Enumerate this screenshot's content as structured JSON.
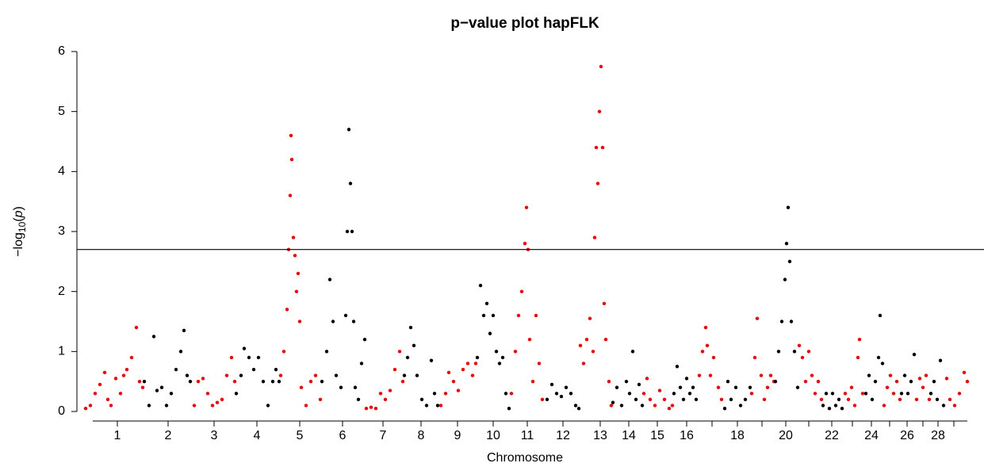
{
  "chart_data": {
    "type": "scatter",
    "title": "p−value plot hapFLK",
    "xlabel": "Chromosome",
    "ylabel": [
      "−log",
      "10",
      "(",
      "p",
      ")"
    ],
    "xlim": [
      0,
      1141
    ],
    "ylim": [
      0,
      6
    ],
    "yticks": [
      0,
      1,
      2,
      3,
      4,
      5,
      6
    ],
    "xticks": [
      {
        "value": 48,
        "label": "1"
      },
      {
        "value": 112,
        "label": "2"
      },
      {
        "value": 170,
        "label": "3"
      },
      {
        "value": 224,
        "label": "4"
      },
      {
        "value": 278,
        "label": "5"
      },
      {
        "value": 332,
        "label": "6"
      },
      {
        "value": 383,
        "label": "7"
      },
      {
        "value": 431,
        "label": "8"
      },
      {
        "value": 477,
        "label": "9"
      },
      {
        "value": 522,
        "label": "10"
      },
      {
        "value": 565,
        "label": "11"
      },
      {
        "value": 610,
        "label": "12"
      },
      {
        "value": 657,
        "label": "13"
      },
      {
        "value": 693,
        "label": "14"
      },
      {
        "value": 729,
        "label": "15"
      },
      {
        "value": 766,
        "label": "16"
      },
      {
        "value": 830,
        "label": "18"
      },
      {
        "value": 891,
        "label": "20"
      },
      {
        "value": 949,
        "label": "22"
      },
      {
        "value": 999,
        "label": "24"
      },
      {
        "value": 1044,
        "label": "26"
      },
      {
        "value": 1083,
        "label": "28"
      }
    ],
    "minor_xticks": [
      798,
      861,
      920,
      975,
      1022,
      1064,
      1103
    ],
    "threshold": 2.7,
    "chromosomes": [
      {
        "color": "#ff0000",
        "x": [
          8,
          14,
          20,
          26,
          32,
          36,
          40,
          46,
          52,
          56,
          60,
          66,
          72,
          76,
          80
        ],
        "values": [
          0.05,
          0.1,
          0.3,
          0.45,
          0.65,
          0.2,
          0.1,
          0.55,
          0.3,
          0.6,
          0.7,
          0.9,
          1.4,
          0.5,
          0.4
        ]
      },
      {
        "color": "#000000",
        "x": [
          82,
          88,
          94,
          98,
          104,
          110,
          116,
          122,
          128,
          132,
          136,
          140
        ],
        "values": [
          0.5,
          0.1,
          1.25,
          0.35,
          0.4,
          0.1,
          0.3,
          0.7,
          1.0,
          1.35,
          0.6,
          0.5
        ]
      },
      {
        "color": "#ff0000",
        "x": [
          145,
          150,
          156,
          162,
          168,
          174,
          180,
          186,
          192,
          196
        ],
        "values": [
          0.1,
          0.5,
          0.55,
          0.3,
          0.1,
          0.15,
          0.2,
          0.6,
          0.9,
          0.5
        ]
      },
      {
        "color": "#000000",
        "x": [
          198,
          204,
          208,
          214,
          220,
          226,
          232,
          238,
          244,
          248,
          252
        ],
        "values": [
          0.3,
          0.6,
          1.05,
          0.9,
          0.7,
          0.9,
          0.5,
          0.1,
          0.5,
          0.7,
          0.5
        ]
      },
      {
        "color": "#ff0000",
        "x": [
          254,
          258,
          262,
          264,
          266,
          267,
          268,
          270,
          272,
          274,
          276,
          278,
          280,
          286,
          292,
          298,
          304
        ],
        "values": [
          0.6,
          1.0,
          1.7,
          2.7,
          3.6,
          4.6,
          4.2,
          2.9,
          2.6,
          2.0,
          2.3,
          1.5,
          0.4,
          0.1,
          0.5,
          0.6,
          0.2
        ]
      },
      {
        "color": "#000000",
        "x": [
          306,
          312,
          316,
          320,
          324,
          330,
          336,
          338,
          340,
          342,
          344,
          346,
          348,
          352,
          356,
          360
        ],
        "values": [
          0.5,
          1.0,
          2.2,
          1.5,
          0.6,
          0.4,
          1.6,
          3.0,
          4.7,
          3.8,
          3.0,
          1.5,
          0.4,
          0.2,
          0.8,
          1.2
        ]
      },
      {
        "color": "#ff0000",
        "x": [
          362,
          368,
          374,
          380,
          386,
          392,
          398,
          404,
          408
        ],
        "values": [
          0.05,
          0.07,
          0.05,
          0.3,
          0.2,
          0.35,
          0.7,
          1.0,
          0.5
        ]
      },
      {
        "color": "#000000",
        "x": [
          410,
          414,
          418,
          422,
          426,
          432,
          438,
          444,
          448,
          452
        ],
        "values": [
          0.6,
          0.9,
          1.4,
          1.1,
          0.6,
          0.2,
          0.1,
          0.85,
          0.3,
          0.1
        ]
      },
      {
        "color": "#ff0000",
        "x": [
          456,
          462,
          466,
          472,
          478,
          484,
          490,
          496,
          500
        ],
        "values": [
          0.1,
          0.3,
          0.65,
          0.5,
          0.35,
          0.7,
          0.8,
          0.6,
          0.8
        ]
      },
      {
        "color": "#000000",
        "x": [
          502,
          506,
          510,
          514,
          518,
          522,
          526,
          530,
          534,
          538,
          542
        ],
        "values": [
          0.9,
          2.1,
          1.6,
          1.8,
          1.3,
          1.6,
          1.0,
          0.8,
          0.9,
          0.3,
          0.05
        ]
      },
      {
        "color": "#ff0000",
        "x": [
          545,
          550,
          554,
          558,
          562,
          564,
          566,
          568,
          572,
          576,
          580,
          584
        ],
        "values": [
          0.3,
          1.0,
          1.6,
          2.0,
          2.8,
          3.4,
          2.7,
          1.2,
          0.5,
          1.6,
          0.8,
          0.2
        ]
      },
      {
        "color": "#000000",
        "x": [
          590,
          596,
          602,
          608,
          614,
          620,
          626,
          630
        ],
        "values": [
          0.2,
          0.45,
          0.3,
          0.25,
          0.4,
          0.3,
          0.1,
          0.05
        ]
      },
      {
        "color": "#ff0000",
        "x": [
          632,
          636,
          640,
          644,
          648,
          650,
          652,
          654,
          656,
          658,
          660,
          662,
          664,
          668,
          671
        ],
        "values": [
          1.1,
          0.8,
          1.2,
          1.55,
          1.0,
          2.9,
          4.4,
          3.8,
          5.0,
          5.75,
          4.4,
          1.8,
          1.2,
          0.5,
          0.1
        ]
      },
      {
        "color": "#000000",
        "x": [
          673,
          678,
          684,
          690,
          694,
          698,
          702,
          706,
          710
        ],
        "values": [
          0.15,
          0.4,
          0.1,
          0.5,
          0.3,
          1.0,
          0.2,
          0.45,
          0.1
        ]
      },
      {
        "color": "#ff0000",
        "x": [
          712,
          716,
          720,
          726,
          732,
          738,
          744,
          748
        ],
        "values": [
          0.3,
          0.55,
          0.2,
          0.1,
          0.35,
          0.2,
          0.05,
          0.1
        ]
      },
      {
        "color": "#000000",
        "x": [
          750,
          754,
          758,
          762,
          766,
          770,
          774,
          778
        ],
        "values": [
          0.3,
          0.75,
          0.4,
          0.2,
          0.55,
          0.3,
          0.4,
          0.2
        ]
      },
      {
        "color": "#ff0000",
        "x": [
          782,
          786,
          790,
          792,
          796,
          800,
          806,
          810
        ],
        "values": [
          0.6,
          1.0,
          1.4,
          1.1,
          0.6,
          0.9,
          0.4,
          0.2
        ]
      },
      {
        "color": "#000000",
        "x": [
          814,
          818,
          822,
          828,
          834,
          840,
          846
        ],
        "values": [
          0.05,
          0.5,
          0.2,
          0.4,
          0.1,
          0.2,
          0.4
        ]
      },
      {
        "color": "#ff0000",
        "x": [
          848,
          852,
          855,
          860,
          864,
          868,
          872,
          876
        ],
        "values": [
          0.3,
          0.9,
          1.55,
          0.6,
          0.2,
          0.4,
          0.6,
          0.5
        ]
      },
      {
        "color": "#000000",
        "x": [
          878,
          882,
          886,
          890,
          892,
          894,
          896,
          898,
          902,
          906
        ],
        "values": [
          0.5,
          1.0,
          1.5,
          2.2,
          2.8,
          3.4,
          2.5,
          1.5,
          1.0,
          0.4
        ]
      },
      {
        "color": "#ff0000",
        "x": [
          908,
          912,
          916,
          920,
          924,
          928,
          932,
          936
        ],
        "values": [
          1.1,
          0.9,
          0.5,
          1.0,
          0.6,
          0.3,
          0.5,
          0.2
        ]
      },
      {
        "color": "#000000",
        "x": [
          938,
          942,
          946,
          950,
          954,
          958,
          962
        ],
        "values": [
          0.1,
          0.3,
          0.05,
          0.3,
          0.1,
          0.2,
          0.05
        ]
      },
      {
        "color": "#ff0000",
        "x": [
          966,
          970,
          974,
          978,
          982,
          984,
          988
        ],
        "values": [
          0.3,
          0.2,
          0.4,
          0.1,
          0.9,
          1.2,
          0.3
        ]
      },
      {
        "color": "#000000",
        "x": [
          992,
          996,
          1000,
          1004,
          1008,
          1010,
          1013
        ],
        "values": [
          0.3,
          0.6,
          0.2,
          0.5,
          0.9,
          1.6,
          0.8
        ]
      },
      {
        "color": "#ff0000",
        "x": [
          1015,
          1019,
          1023,
          1027,
          1031,
          1035
        ],
        "values": [
          0.1,
          0.4,
          0.6,
          0.3,
          0.5,
          0.2
        ]
      },
      {
        "color": "#000000",
        "x": [
          1037,
          1041,
          1045,
          1049,
          1053
        ],
        "values": [
          0.3,
          0.6,
          0.3,
          0.5,
          0.95
        ]
      },
      {
        "color": "#ff0000",
        "x": [
          1056,
          1060,
          1064,
          1068,
          1072
        ],
        "values": [
          0.2,
          0.55,
          0.4,
          0.6,
          0.2
        ]
      },
      {
        "color": "#000000",
        "x": [
          1074,
          1078,
          1082,
          1086,
          1090
        ],
        "values": [
          0.3,
          0.5,
          0.2,
          0.85,
          0.1
        ]
      },
      {
        "color": "#ff0000",
        "x": [
          1094,
          1098,
          1104,
          1110,
          1116,
          1120
        ],
        "values": [
          0.55,
          0.2,
          0.1,
          0.3,
          0.65,
          0.5
        ]
      }
    ]
  }
}
